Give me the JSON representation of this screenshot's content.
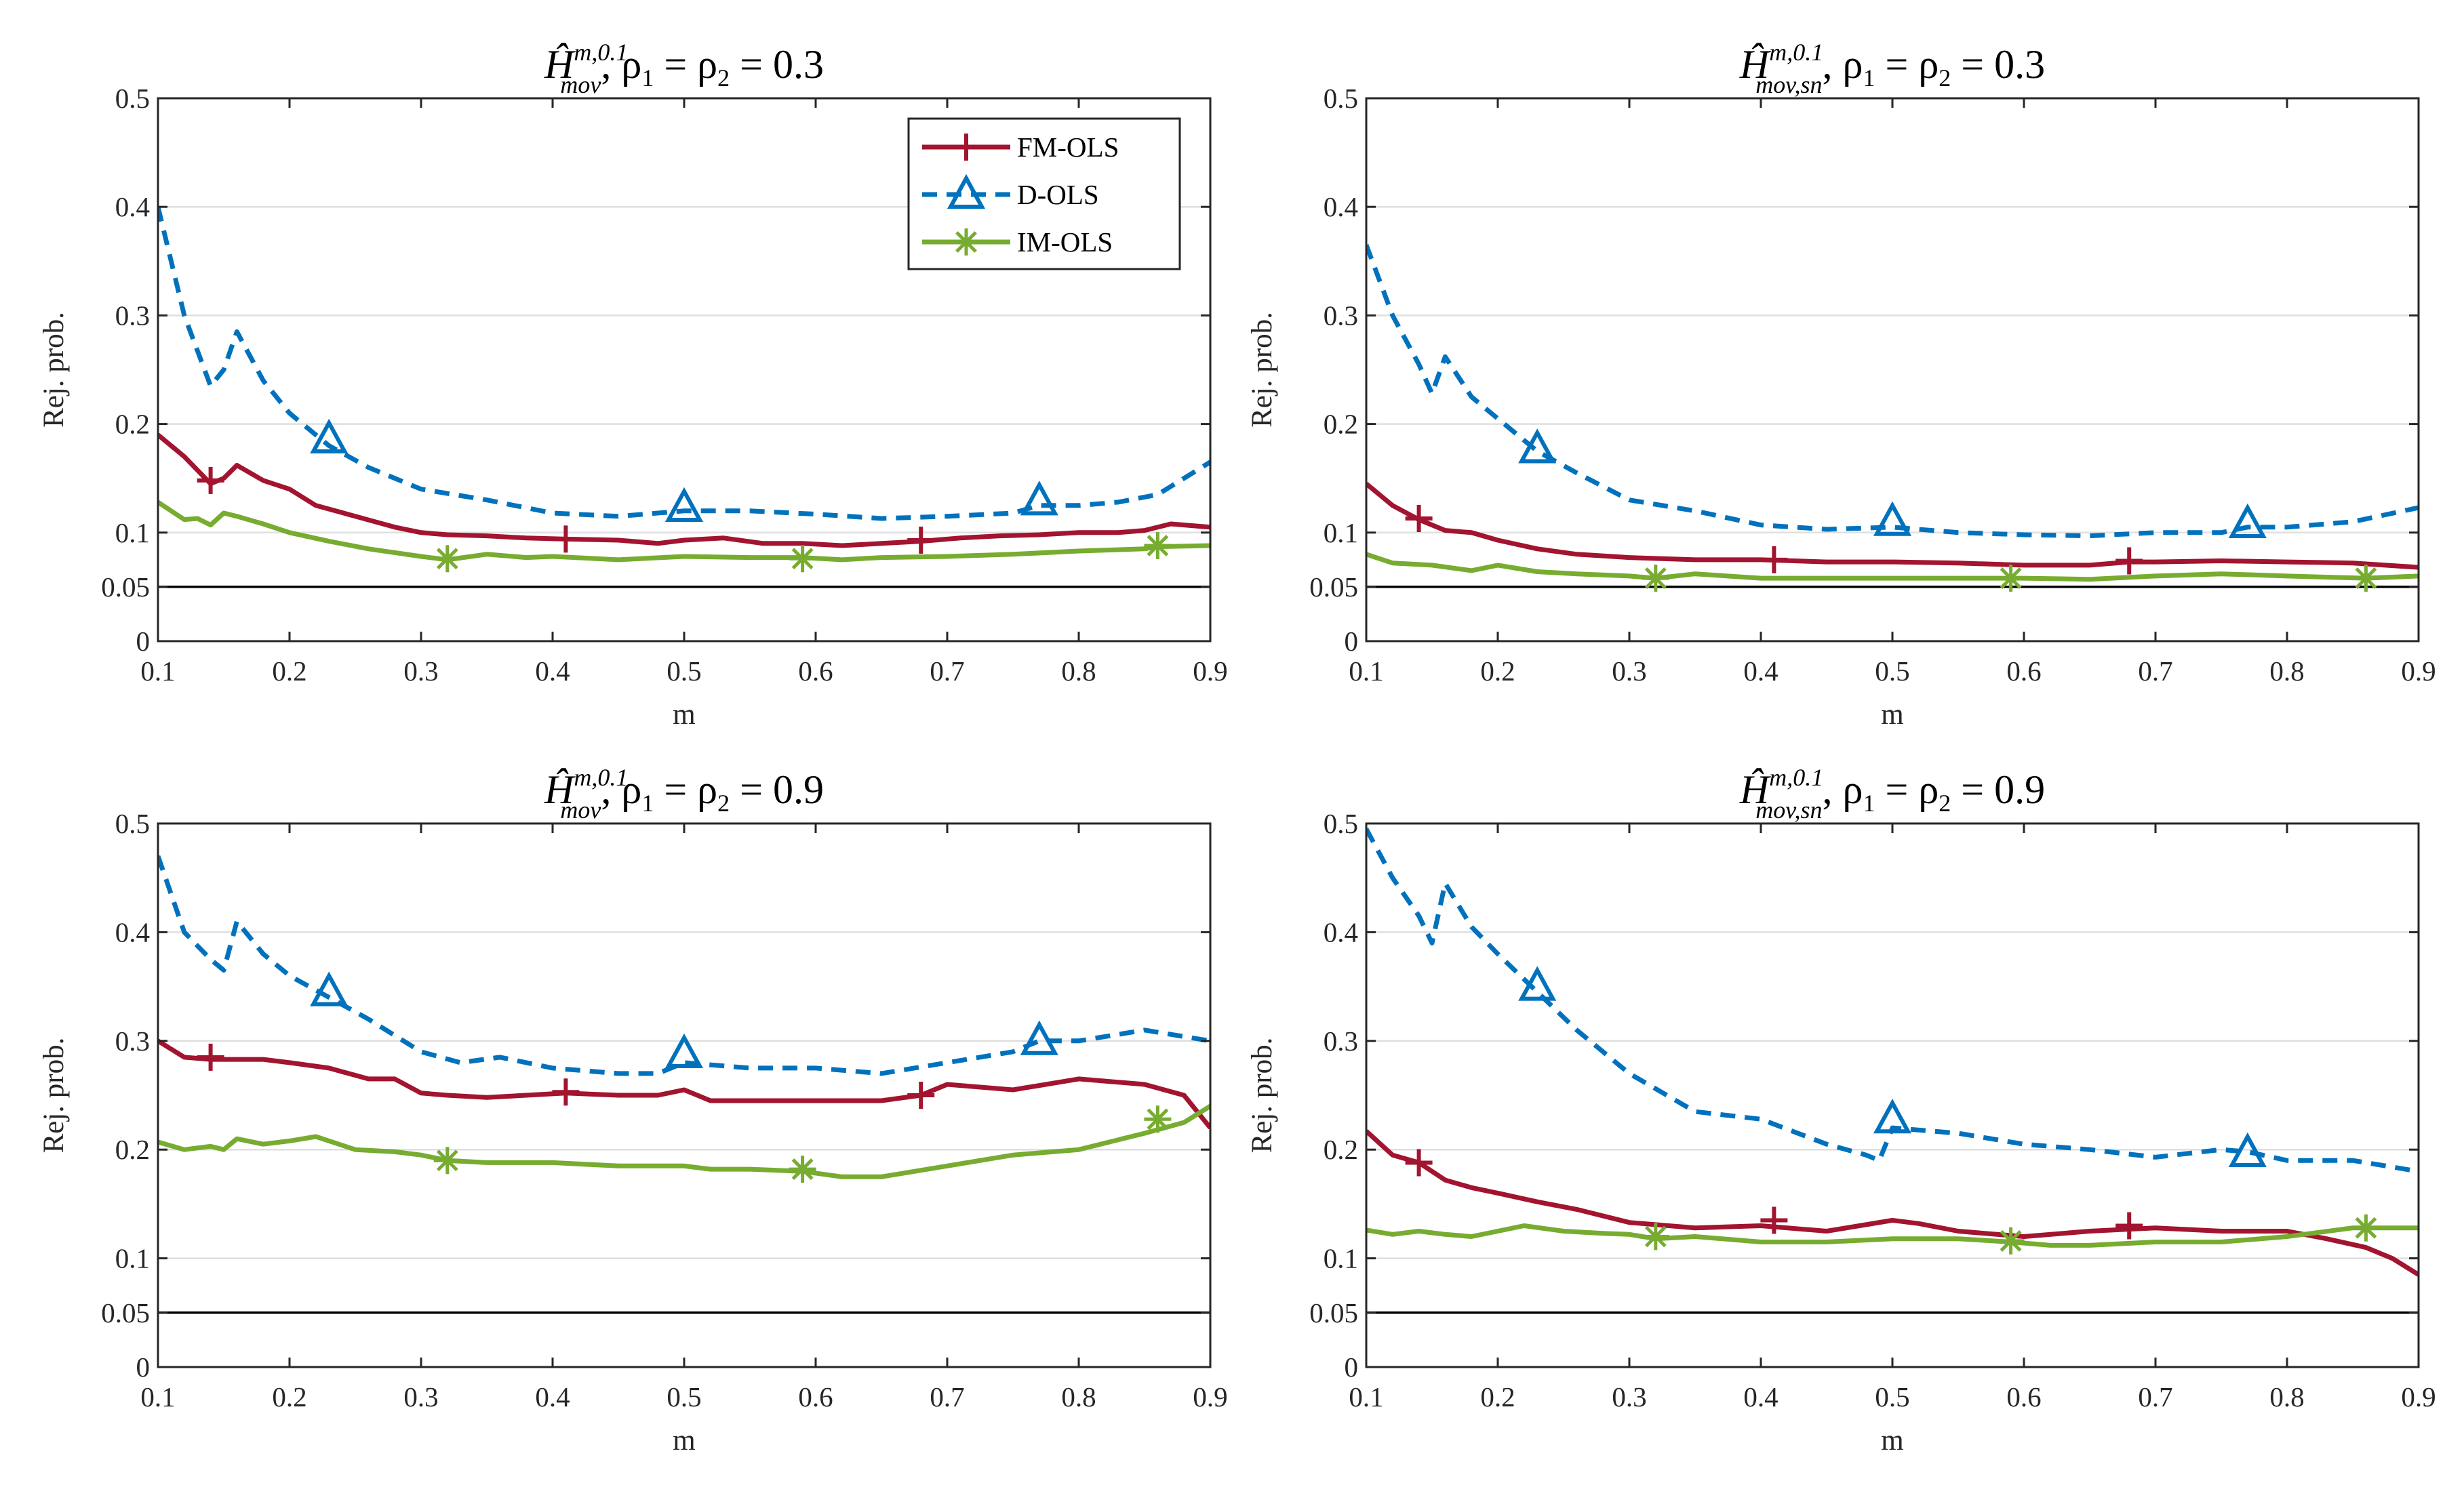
{
  "figure": {
    "colors": {
      "fm": "#A2142F",
      "d": "#0072BD",
      "im": "#77AC30",
      "grid": "#DFDFDF",
      "axis": "#262626",
      "ref": "#000000"
    },
    "legend": {
      "panel": 0,
      "items": [
        {
          "label": "FM-OLS",
          "series": 0
        },
        {
          "label": "D-OLS",
          "series": 1
        },
        {
          "label": "IM-OLS",
          "series": 2
        }
      ]
    }
  },
  "chart_data": [
    {
      "type": "line",
      "title": {
        "stat": "Ĥ",
        "sup": "m,0.1",
        "sub": "mov",
        "rho": ", ρ",
        "rho1": "1",
        "eq1": " = ρ",
        "rho2": "2",
        "eq2": " = 0.3"
      },
      "xlabel": "m",
      "ylabel": "Rej. prob.",
      "xlim": [
        0.1,
        0.9
      ],
      "ylim": [
        0,
        0.5
      ],
      "xticks": [
        0.1,
        0.2,
        0.3,
        0.4,
        0.5,
        0.6,
        0.7,
        0.8,
        0.9
      ],
      "xtick_labels": [
        "0.1",
        "0.2",
        "0.3",
        "0.4",
        "0.5",
        "0.6",
        "0.7",
        "0.8",
        "0.9"
      ],
      "yticks": [
        0,
        0.05,
        0.1,
        0.2,
        0.3,
        0.4,
        0.5
      ],
      "ytick_labels": [
        "0",
        "0.05",
        "0.1",
        "0.2",
        "0.3",
        "0.4",
        "0.5"
      ],
      "grid": "horizontal",
      "reference_line": 0.05,
      "legend_position": "top-right",
      "series": [
        {
          "name": "FM-OLS",
          "x": [
            0.1,
            0.12,
            0.14,
            0.15,
            0.16,
            0.18,
            0.2,
            0.22,
            0.25,
            0.28,
            0.3,
            0.32,
            0.35,
            0.38,
            0.41,
            0.45,
            0.48,
            0.5,
            0.53,
            0.56,
            0.59,
            0.62,
            0.65,
            0.68,
            0.71,
            0.74,
            0.77,
            0.8,
            0.83,
            0.85,
            0.87,
            0.9
          ],
          "values": [
            0.19,
            0.17,
            0.145,
            0.15,
            0.162,
            0.148,
            0.14,
            0.125,
            0.115,
            0.105,
            0.1,
            0.098,
            0.097,
            0.095,
            0.094,
            0.093,
            0.09,
            0.093,
            0.095,
            0.09,
            0.09,
            0.088,
            0.09,
            0.092,
            0.095,
            0.097,
            0.098,
            0.1,
            0.1,
            0.102,
            0.108,
            0.105
          ],
          "markers_x": [
            0.14,
            0.41,
            0.68
          ],
          "markers_y": [
            0.148,
            0.094,
            0.093
          ]
        },
        {
          "name": "D-OLS",
          "x": [
            0.1,
            0.12,
            0.14,
            0.15,
            0.16,
            0.18,
            0.2,
            0.23,
            0.26,
            0.3,
            0.35,
            0.4,
            0.45,
            0.5,
            0.55,
            0.6,
            0.65,
            0.7,
            0.75,
            0.77,
            0.8,
            0.83,
            0.86,
            0.9
          ],
          "values": [
            0.4,
            0.3,
            0.235,
            0.25,
            0.285,
            0.24,
            0.21,
            0.18,
            0.16,
            0.14,
            0.13,
            0.118,
            0.115,
            0.12,
            0.12,
            0.117,
            0.113,
            0.115,
            0.118,
            0.125,
            0.125,
            0.128,
            0.135,
            0.165
          ],
          "markers_x": [
            0.23,
            0.5,
            0.77
          ],
          "markers_y": [
            0.186,
            0.123,
            0.129
          ]
        },
        {
          "name": "IM-OLS",
          "x": [
            0.1,
            0.12,
            0.13,
            0.14,
            0.15,
            0.16,
            0.18,
            0.2,
            0.23,
            0.26,
            0.3,
            0.32,
            0.35,
            0.38,
            0.4,
            0.45,
            0.5,
            0.55,
            0.59,
            0.62,
            0.65,
            0.7,
            0.75,
            0.8,
            0.85,
            0.86,
            0.9
          ],
          "values": [
            0.128,
            0.112,
            0.113,
            0.107,
            0.118,
            0.115,
            0.108,
            0.1,
            0.092,
            0.085,
            0.078,
            0.075,
            0.08,
            0.077,
            0.078,
            0.075,
            0.078,
            0.077,
            0.077,
            0.075,
            0.077,
            0.078,
            0.08,
            0.083,
            0.085,
            0.087,
            0.088
          ],
          "markers_x": [
            0.32,
            0.59,
            0.86
          ],
          "markers_y": [
            0.076,
            0.076,
            0.088
          ]
        }
      ]
    },
    {
      "type": "line",
      "title": {
        "stat": "Ĥ",
        "sup": "m,0.1",
        "sub": "mov,sn",
        "rho": ", ρ",
        "rho1": "1",
        "eq1": " = ρ",
        "rho2": "2",
        "eq2": " = 0.3"
      },
      "xlabel": "m",
      "ylabel": "Rej. prob.",
      "xlim": [
        0.1,
        0.9
      ],
      "ylim": [
        0,
        0.5
      ],
      "xticks": [
        0.1,
        0.2,
        0.3,
        0.4,
        0.5,
        0.6,
        0.7,
        0.8,
        0.9
      ],
      "xtick_labels": [
        "0.1",
        "0.2",
        "0.3",
        "0.4",
        "0.5",
        "0.6",
        "0.7",
        "0.8",
        "0.9"
      ],
      "yticks": [
        0,
        0.05,
        0.1,
        0.2,
        0.3,
        0.4,
        0.5
      ],
      "ytick_labels": [
        "0",
        "0.05",
        "0.1",
        "0.2",
        "0.3",
        "0.4",
        "0.5"
      ],
      "grid": "horizontal",
      "reference_line": 0.05,
      "series": [
        {
          "name": "FM-OLS",
          "x": [
            0.1,
            0.12,
            0.14,
            0.16,
            0.18,
            0.2,
            0.23,
            0.26,
            0.3,
            0.35,
            0.4,
            0.45,
            0.5,
            0.55,
            0.6,
            0.65,
            0.68,
            0.7,
            0.75,
            0.8,
            0.85,
            0.9
          ],
          "values": [
            0.145,
            0.125,
            0.112,
            0.102,
            0.1,
            0.093,
            0.085,
            0.08,
            0.077,
            0.075,
            0.075,
            0.073,
            0.073,
            0.072,
            0.07,
            0.07,
            0.073,
            0.073,
            0.074,
            0.073,
            0.072,
            0.068
          ],
          "markers_x": [
            0.14,
            0.41,
            0.68
          ],
          "markers_y": [
            0.113,
            0.075,
            0.074
          ]
        },
        {
          "name": "D-OLS",
          "x": [
            0.1,
            0.12,
            0.14,
            0.15,
            0.16,
            0.18,
            0.2,
            0.23,
            0.26,
            0.3,
            0.35,
            0.4,
            0.45,
            0.5,
            0.55,
            0.6,
            0.65,
            0.7,
            0.75,
            0.77,
            0.8,
            0.85,
            0.9
          ],
          "values": [
            0.365,
            0.3,
            0.255,
            0.228,
            0.262,
            0.225,
            0.205,
            0.175,
            0.155,
            0.13,
            0.12,
            0.107,
            0.103,
            0.105,
            0.1,
            0.098,
            0.097,
            0.1,
            0.1,
            0.105,
            0.105,
            0.11,
            0.123
          ],
          "markers_x": [
            0.23,
            0.5,
            0.77
          ],
          "markers_y": [
            0.177,
            0.11,
            0.108
          ]
        },
        {
          "name": "IM-OLS",
          "x": [
            0.1,
            0.12,
            0.15,
            0.18,
            0.2,
            0.23,
            0.26,
            0.3,
            0.32,
            0.35,
            0.4,
            0.45,
            0.5,
            0.55,
            0.6,
            0.65,
            0.7,
            0.75,
            0.8,
            0.86,
            0.9
          ],
          "values": [
            0.08,
            0.072,
            0.07,
            0.065,
            0.07,
            0.064,
            0.062,
            0.06,
            0.058,
            0.062,
            0.058,
            0.058,
            0.058,
            0.058,
            0.058,
            0.057,
            0.06,
            0.062,
            0.06,
            0.058,
            0.06
          ],
          "markers_x": [
            0.32,
            0.59,
            0.86
          ],
          "markers_y": [
            0.058,
            0.058,
            0.058
          ]
        }
      ]
    },
    {
      "type": "line",
      "title": {
        "stat": "Ĥ",
        "sup": "m,0.1",
        "sub": "mov",
        "rho": ", ρ",
        "rho1": "1",
        "eq1": " = ρ",
        "rho2": "2",
        "eq2": " = 0.9"
      },
      "xlabel": "m",
      "ylabel": "Rej. prob.",
      "xlim": [
        0.1,
        0.9
      ],
      "ylim": [
        0,
        0.5
      ],
      "xticks": [
        0.1,
        0.2,
        0.3,
        0.4,
        0.5,
        0.6,
        0.7,
        0.8,
        0.9
      ],
      "xtick_labels": [
        "0.1",
        "0.2",
        "0.3",
        "0.4",
        "0.5",
        "0.6",
        "0.7",
        "0.8",
        "0.9"
      ],
      "yticks": [
        0,
        0.05,
        0.1,
        0.2,
        0.3,
        0.4,
        0.5
      ],
      "ytick_labels": [
        "0",
        "0.05",
        "0.1",
        "0.2",
        "0.3",
        "0.4",
        "0.5"
      ],
      "grid": "horizontal",
      "reference_line": 0.05,
      "series": [
        {
          "name": "FM-OLS",
          "x": [
            0.1,
            0.12,
            0.14,
            0.16,
            0.18,
            0.2,
            0.23,
            0.26,
            0.28,
            0.3,
            0.32,
            0.35,
            0.38,
            0.41,
            0.45,
            0.48,
            0.5,
            0.52,
            0.55,
            0.6,
            0.65,
            0.68,
            0.7,
            0.75,
            0.8,
            0.85,
            0.88,
            0.9
          ],
          "values": [
            0.3,
            0.285,
            0.283,
            0.283,
            0.283,
            0.28,
            0.275,
            0.265,
            0.265,
            0.252,
            0.25,
            0.248,
            0.25,
            0.252,
            0.25,
            0.25,
            0.255,
            0.245,
            0.245,
            0.245,
            0.245,
            0.25,
            0.26,
            0.255,
            0.265,
            0.26,
            0.25,
            0.22
          ],
          "markers_x": [
            0.14,
            0.41,
            0.68
          ],
          "markers_y": [
            0.285,
            0.253,
            0.25
          ]
        },
        {
          "name": "D-OLS",
          "x": [
            0.1,
            0.12,
            0.14,
            0.15,
            0.16,
            0.18,
            0.2,
            0.23,
            0.26,
            0.3,
            0.33,
            0.36,
            0.4,
            0.45,
            0.48,
            0.5,
            0.55,
            0.6,
            0.65,
            0.7,
            0.75,
            0.77,
            0.8,
            0.85,
            0.9
          ],
          "values": [
            0.47,
            0.4,
            0.375,
            0.365,
            0.41,
            0.38,
            0.36,
            0.34,
            0.32,
            0.29,
            0.28,
            0.285,
            0.275,
            0.27,
            0.27,
            0.28,
            0.275,
            0.275,
            0.27,
            0.28,
            0.29,
            0.3,
            0.3,
            0.31,
            0.3
          ],
          "markers_x": [
            0.23,
            0.5,
            0.77
          ],
          "markers_y": [
            0.345,
            0.288,
            0.3
          ]
        },
        {
          "name": "IM-OLS",
          "x": [
            0.1,
            0.12,
            0.14,
            0.15,
            0.16,
            0.18,
            0.2,
            0.22,
            0.25,
            0.28,
            0.3,
            0.32,
            0.35,
            0.4,
            0.45,
            0.5,
            0.52,
            0.55,
            0.59,
            0.62,
            0.65,
            0.7,
            0.75,
            0.8,
            0.85,
            0.88,
            0.9
          ],
          "values": [
            0.207,
            0.2,
            0.203,
            0.2,
            0.21,
            0.205,
            0.208,
            0.212,
            0.2,
            0.198,
            0.195,
            0.19,
            0.188,
            0.188,
            0.185,
            0.185,
            0.182,
            0.182,
            0.18,
            0.175,
            0.175,
            0.185,
            0.195,
            0.2,
            0.215,
            0.225,
            0.24
          ],
          "markers_x": [
            0.32,
            0.59,
            0.86
          ],
          "markers_y": [
            0.19,
            0.182,
            0.228
          ]
        }
      ]
    },
    {
      "type": "line",
      "title": {
        "stat": "Ĥ",
        "sup": "m,0.1",
        "sub": "mov,sn",
        "rho": ", ρ",
        "rho1": "1",
        "eq1": " = ρ",
        "rho2": "2",
        "eq2": " = 0.9"
      },
      "xlabel": "m",
      "ylabel": "Rej. prob.",
      "xlim": [
        0.1,
        0.9
      ],
      "ylim": [
        0,
        0.5
      ],
      "xticks": [
        0.1,
        0.2,
        0.3,
        0.4,
        0.5,
        0.6,
        0.7,
        0.8,
        0.9
      ],
      "xtick_labels": [
        "0.1",
        "0.2",
        "0.3",
        "0.4",
        "0.5",
        "0.6",
        "0.7",
        "0.8",
        "0.9"
      ],
      "yticks": [
        0,
        0.05,
        0.1,
        0.2,
        0.3,
        0.4,
        0.5
      ],
      "ytick_labels": [
        "0",
        "0.05",
        "0.1",
        "0.2",
        "0.3",
        "0.4",
        "0.5"
      ],
      "grid": "horizontal",
      "reference_line": 0.05,
      "series": [
        {
          "name": "FM-OLS",
          "x": [
            0.1,
            0.12,
            0.14,
            0.16,
            0.18,
            0.2,
            0.23,
            0.26,
            0.3,
            0.35,
            0.4,
            0.45,
            0.5,
            0.52,
            0.55,
            0.6,
            0.65,
            0.7,
            0.75,
            0.8,
            0.83,
            0.86,
            0.88,
            0.9
          ],
          "values": [
            0.217,
            0.195,
            0.188,
            0.172,
            0.165,
            0.16,
            0.152,
            0.145,
            0.133,
            0.128,
            0.13,
            0.125,
            0.135,
            0.132,
            0.125,
            0.12,
            0.125,
            0.128,
            0.125,
            0.125,
            0.118,
            0.11,
            0.1,
            0.085
          ],
          "markers_x": [
            0.14,
            0.41,
            0.68
          ],
          "markers_y": [
            0.188,
            0.135,
            0.13
          ]
        },
        {
          "name": "D-OLS",
          "x": [
            0.1,
            0.12,
            0.14,
            0.15,
            0.16,
            0.18,
            0.2,
            0.23,
            0.26,
            0.3,
            0.35,
            0.4,
            0.45,
            0.48,
            0.49,
            0.5,
            0.55,
            0.6,
            0.65,
            0.7,
            0.75,
            0.77,
            0.8,
            0.85,
            0.9
          ],
          "values": [
            0.495,
            0.45,
            0.415,
            0.39,
            0.445,
            0.405,
            0.38,
            0.345,
            0.31,
            0.27,
            0.235,
            0.228,
            0.205,
            0.195,
            0.19,
            0.22,
            0.215,
            0.205,
            0.2,
            0.193,
            0.2,
            0.198,
            0.19,
            0.19,
            0.18
          ],
          "markers_x": [
            0.23,
            0.5,
            0.77
          ],
          "markers_y": [
            0.35,
            0.228,
            0.197
          ]
        },
        {
          "name": "IM-OLS",
          "x": [
            0.1,
            0.12,
            0.14,
            0.16,
            0.18,
            0.2,
            0.22,
            0.25,
            0.28,
            0.3,
            0.32,
            0.35,
            0.4,
            0.45,
            0.5,
            0.55,
            0.59,
            0.62,
            0.65,
            0.7,
            0.75,
            0.8,
            0.85,
            0.86,
            0.9
          ],
          "values": [
            0.126,
            0.122,
            0.125,
            0.122,
            0.12,
            0.125,
            0.13,
            0.125,
            0.123,
            0.122,
            0.118,
            0.12,
            0.115,
            0.115,
            0.118,
            0.118,
            0.115,
            0.112,
            0.112,
            0.115,
            0.115,
            0.12,
            0.128,
            0.128,
            0.128
          ],
          "markers_x": [
            0.32,
            0.59,
            0.86
          ],
          "markers_y": [
            0.12,
            0.116,
            0.128
          ]
        }
      ]
    }
  ]
}
